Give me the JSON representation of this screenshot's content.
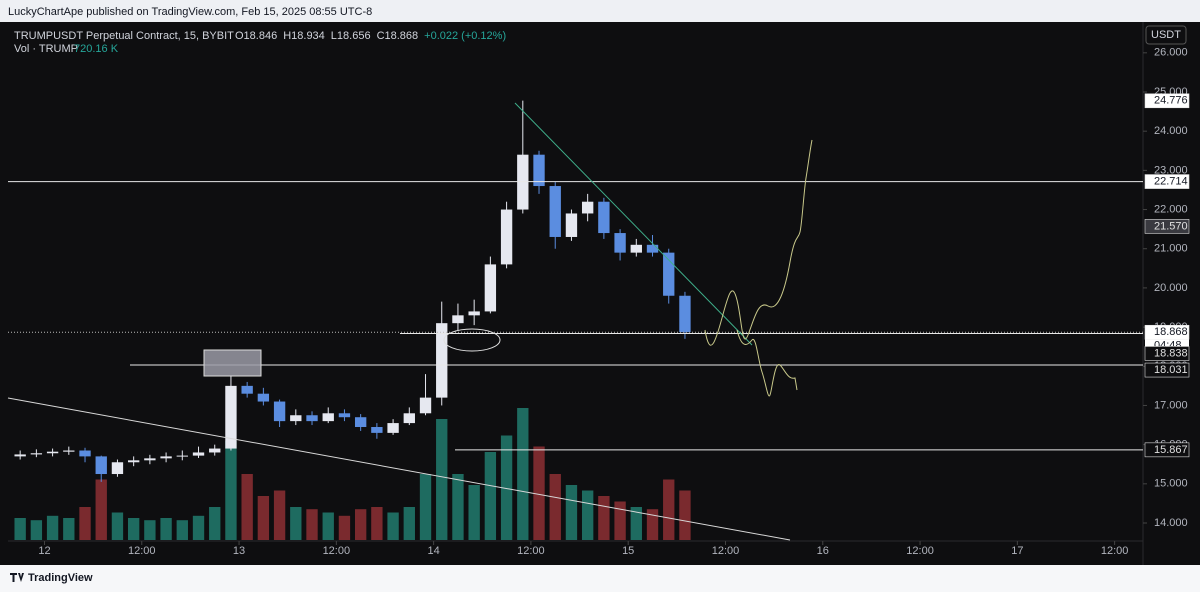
{
  "header": {
    "published": "LuckyChartApe published on TradingView.com, Feb 15, 2025 08:55 UTC-8",
    "currency": "USDT"
  },
  "footer": {
    "brand": "TradingView"
  },
  "chart_data": {
    "type": "candlestick",
    "symbol": "TRUMPUSDT Perpetual Contract, 15, BYBIT",
    "ohlc_legend": [
      "O18.846",
      "H18.934",
      "L18.656",
      "C18.868",
      "+0.022 (+0.12%)"
    ],
    "volume_legend": {
      "name": "Vol · TRUMP",
      "value": "720.16 K"
    },
    "x": [
      -3,
      -1,
      1,
      3,
      5,
      7,
      9,
      11,
      13,
      15,
      17,
      19,
      21,
      23,
      25,
      27,
      29,
      31,
      33,
      35,
      37,
      39,
      41,
      43,
      45,
      47,
      49,
      51,
      53,
      55,
      57,
      59,
      61,
      63,
      65,
      67,
      69,
      71,
      73,
      75,
      77,
      79
    ],
    "open": [
      15.7,
      15.75,
      15.78,
      15.82,
      15.85,
      15.7,
      15.25,
      15.55,
      15.6,
      15.65,
      15.7,
      15.72,
      15.8,
      15.9,
      17.5,
      17.3,
      17.1,
      16.6,
      16.75,
      16.6,
      16.8,
      16.7,
      16.45,
      16.3,
      16.55,
      16.8,
      17.2,
      19.1,
      19.3,
      19.4,
      20.6,
      22.0,
      23.4,
      22.6,
      21.3,
      21.9,
      22.2,
      21.4,
      20.9,
      21.1,
      20.9,
      19.8
    ],
    "high": [
      15.85,
      15.88,
      15.9,
      15.95,
      15.92,
      15.72,
      15.62,
      15.7,
      15.74,
      15.8,
      15.85,
      15.95,
      16.0,
      17.75,
      17.6,
      17.45,
      17.15,
      16.9,
      16.85,
      16.95,
      16.9,
      16.78,
      16.55,
      16.65,
      16.95,
      17.8,
      19.65,
      19.6,
      19.7,
      20.8,
      22.2,
      24.78,
      23.5,
      22.7,
      22.0,
      22.4,
      22.3,
      21.5,
      21.25,
      21.35,
      21.0,
      19.9
    ],
    "low": [
      15.62,
      15.68,
      15.7,
      15.74,
      15.55,
      15.05,
      15.18,
      15.45,
      15.5,
      15.55,
      15.6,
      15.66,
      15.72,
      15.85,
      17.2,
      17.0,
      16.45,
      16.5,
      16.5,
      16.55,
      16.6,
      16.35,
      16.15,
      16.25,
      16.5,
      16.75,
      17.0,
      18.9,
      19.05,
      19.35,
      20.5,
      21.9,
      22.4,
      21.0,
      21.2,
      21.7,
      21.25,
      20.7,
      20.8,
      20.8,
      19.6,
      18.7
    ],
    "close": [
      15.75,
      15.78,
      15.82,
      15.85,
      15.7,
      15.25,
      15.55,
      15.6,
      15.65,
      15.7,
      15.72,
      15.8,
      15.9,
      17.5,
      17.3,
      17.1,
      16.6,
      16.75,
      16.6,
      16.8,
      16.7,
      16.45,
      16.3,
      16.55,
      16.8,
      17.2,
      19.1,
      19.3,
      19.4,
      20.6,
      22.0,
      23.4,
      22.6,
      21.3,
      21.9,
      22.2,
      21.4,
      20.9,
      21.1,
      20.9,
      19.8,
      18.87
    ],
    "volume": [
      20,
      18,
      22,
      20,
      30,
      55,
      25,
      20,
      18,
      20,
      18,
      22,
      30,
      90,
      60,
      40,
      45,
      30,
      28,
      25,
      22,
      28,
      30,
      25,
      30,
      60,
      110,
      60,
      50,
      80,
      95,
      120,
      85,
      60,
      50,
      45,
      40,
      35,
      30,
      28,
      55,
      45
    ],
    "up_color": "#e6e8f0",
    "down_color": "#5b8de0",
    "vol_up_color": "#1e6b60",
    "vol_down_color": "#7a2a2e",
    "xlim": [
      -4.5,
      135.5
    ],
    "xticks": [
      {
        "value": 0,
        "label": "12"
      },
      {
        "value": 12,
        "label": "12:00"
      },
      {
        "value": 24,
        "label": "13"
      },
      {
        "value": 36,
        "label": "12:00"
      },
      {
        "value": 48,
        "label": "14"
      },
      {
        "value": 60,
        "label": "12:00"
      },
      {
        "value": 72,
        "label": "15"
      },
      {
        "value": 84,
        "label": "12:00"
      },
      {
        "value": 96,
        "label": "16"
      },
      {
        "value": 108,
        "label": "12:00"
      },
      {
        "value": 120,
        "label": "17"
      },
      {
        "value": 132,
        "label": "12:00"
      }
    ],
    "ylim": [
      13.2,
      26.8
    ],
    "yticks": [
      {
        "value": 14,
        "label": "14.000"
      },
      {
        "value": 15,
        "label": "15.000"
      },
      {
        "value": 16,
        "label": "16.000"
      },
      {
        "value": 17,
        "label": "17.000"
      },
      {
        "value": 18,
        "label": "18.000"
      },
      {
        "value": 19,
        "label": "19.000"
      },
      {
        "value": 20,
        "label": "20.000"
      },
      {
        "value": 21,
        "label": "21.000"
      },
      {
        "value": 22,
        "label": "22.000"
      },
      {
        "value": 23,
        "label": "23.000"
      },
      {
        "value": 24,
        "label": "24.000"
      },
      {
        "value": 25,
        "label": "25.000"
      },
      {
        "value": 26,
        "label": "26.000"
      }
    ],
    "grid": false,
    "levels": [
      22.714,
      18.838,
      18.031,
      15.867
    ],
    "price_labels": [
      24.776,
      22.714,
      {
        "value": 21.57,
        "label": "21.570"
      },
      18.868,
      18.838,
      18.031,
      15.867
    ],
    "countdown": "04:48"
  }
}
